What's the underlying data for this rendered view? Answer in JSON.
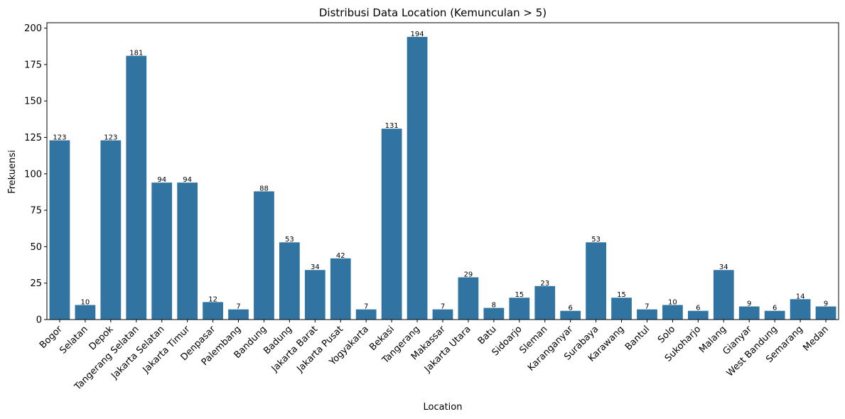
{
  "chart_data": {
    "type": "bar",
    "title": "Distribusi Data Location (Kemunculan > 5)",
    "xlabel": "Location",
    "ylabel": "Frekuensi",
    "categories": [
      "Bogor",
      "Selatan",
      "Depok",
      "Tangerang Selatan",
      "Jakarta Selatan",
      "Jakarta Timur",
      "Denpasar",
      "Palembang",
      "Bandung",
      "Badung",
      "Jakarta Barat",
      "Jakarta Pusat",
      "Yogyakarta",
      "Bekasi",
      "Tangerang",
      "Makassar",
      "Jakarta Utara",
      "Batu",
      "Sidoarjo",
      "Sleman",
      "Karanganyar",
      "Surabaya",
      "Karawang",
      "Bantul",
      "Solo",
      "Sukoharjo",
      "Malang",
      "Gianyar",
      "West Bandung",
      "Semarang",
      "Medan"
    ],
    "values": [
      123,
      10,
      123,
      181,
      94,
      94,
      12,
      7,
      88,
      53,
      34,
      42,
      7,
      131,
      194,
      7,
      29,
      8,
      15,
      23,
      6,
      53,
      15,
      7,
      10,
      6,
      34,
      9,
      6,
      14,
      9
    ],
    "ylim": [
      0,
      203.7
    ],
    "yticks": [
      0,
      25,
      50,
      75,
      100,
      125,
      150,
      175,
      200
    ],
    "bar_color": "#3274a1",
    "grid": false,
    "legend": "none"
  }
}
